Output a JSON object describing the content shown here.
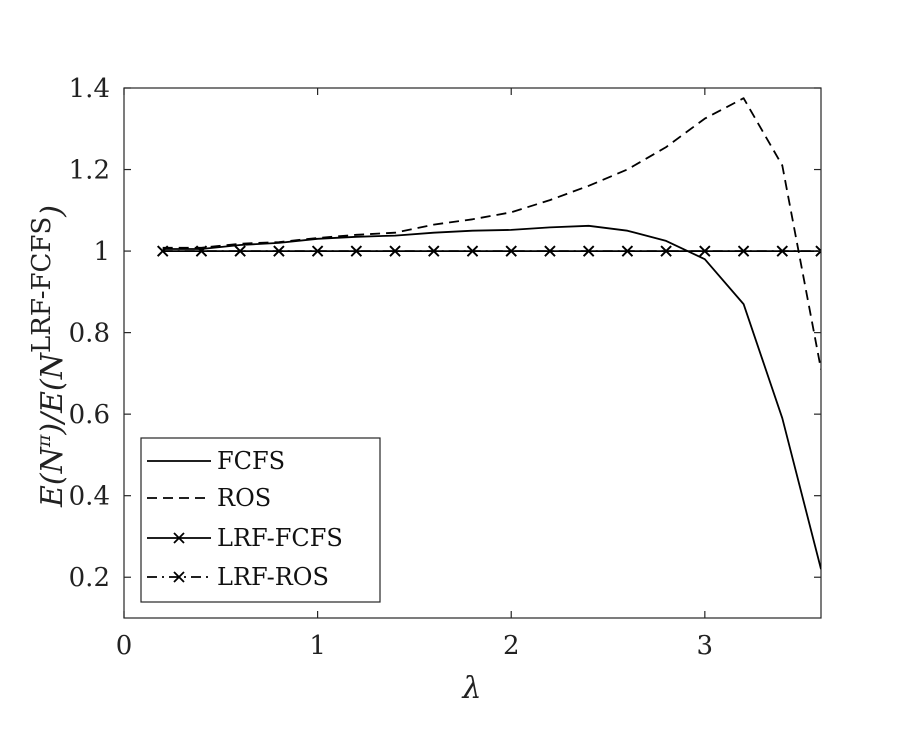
{
  "chart_data": {
    "type": "line",
    "title": "",
    "xlabel": "λ",
    "ylabel": "E(N^π)/E(N^LRF-FCFS)",
    "ylabel_parts": {
      "main": "E(N",
      "pi": "π",
      "mid": ")/E(N",
      "sup": "LRF-FCFS",
      "end": ")"
    },
    "xlim": [
      0,
      3.6
    ],
    "ylim": [
      0.1,
      1.4
    ],
    "xticks": [
      0,
      1,
      2,
      3
    ],
    "yticks": [
      0.2,
      0.4,
      0.6,
      0.8,
      1,
      1.2,
      1.4
    ],
    "x_tick_labels": [
      "0",
      "1",
      "2",
      "3"
    ],
    "y_tick_labels": [
      "0.2",
      "0.4",
      "0.6",
      "0.8",
      "1",
      "1.2",
      "1.4"
    ],
    "grid": false,
    "legend_position": "bottom-left",
    "x": [
      0.2,
      0.4,
      0.6,
      0.8,
      1.0,
      1.2,
      1.4,
      1.6,
      1.8,
      2.0,
      2.2,
      2.4,
      2.6,
      2.8,
      3.0,
      3.2,
      3.4,
      3.6
    ],
    "series": [
      {
        "name": "FCFS",
        "style": "solid",
        "marker": "none",
        "values": [
          1.005,
          1.005,
          1.015,
          1.02,
          1.03,
          1.035,
          1.038,
          1.045,
          1.05,
          1.052,
          1.058,
          1.062,
          1.05,
          1.025,
          0.98,
          0.87,
          0.59,
          0.22
        ]
      },
      {
        "name": "ROS",
        "style": "dashed",
        "marker": "none",
        "values": [
          1.008,
          1.008,
          1.018,
          1.022,
          1.032,
          1.04,
          1.045,
          1.065,
          1.078,
          1.095,
          1.125,
          1.16,
          1.2,
          1.255,
          1.325,
          1.375,
          1.21,
          0.71
        ]
      },
      {
        "name": "LRF-FCFS",
        "style": "solid",
        "marker": "x",
        "values": [
          1,
          1,
          1,
          1,
          1,
          1,
          1,
          1,
          1,
          1,
          1,
          1,
          1,
          1,
          1,
          1,
          1,
          1
        ]
      },
      {
        "name": "LRF-ROS",
        "style": "dashdot",
        "marker": "x",
        "values": [
          1,
          1,
          1,
          1,
          1,
          1,
          1,
          1,
          1,
          1,
          1,
          1,
          1,
          1,
          1,
          1,
          1,
          1
        ]
      }
    ]
  }
}
